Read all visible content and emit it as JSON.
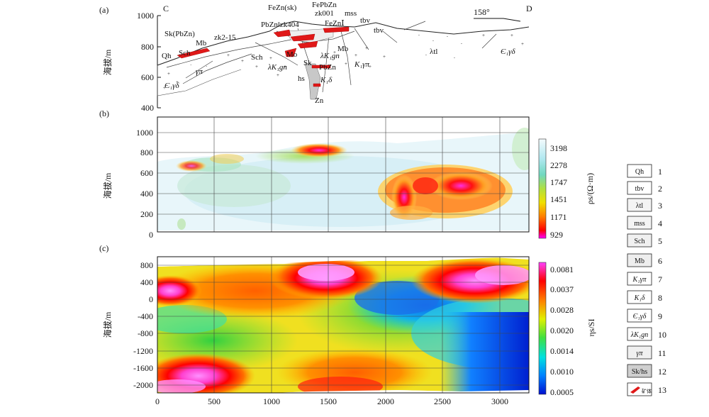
{
  "figure": {
    "panel_a": {
      "label": "(a)",
      "left_end": "C",
      "right_end": "D",
      "azimuth": "158°",
      "y_axis_label": "海拔/m",
      "y_ticks": [
        "1000",
        "800",
        "600",
        "400"
      ],
      "geo_labels": [
        {
          "text": "Sk(PbZn)"
        },
        {
          "text": "Mb"
        },
        {
          "text": "zk2-15"
        },
        {
          "text": "Qh"
        },
        {
          "text": "Sch"
        },
        {
          "text": "γπ"
        },
        {
          "text": "Є₁γδ"
        },
        {
          "text": "FeZn(sk)"
        },
        {
          "text": "FePbZn"
        },
        {
          "text": "PbZn‖zk404"
        },
        {
          "text": "zk001"
        },
        {
          "text": "mss"
        },
        {
          "text": "FeZnⅠ"
        },
        {
          "text": "tbv"
        },
        {
          "text": "tbv"
        },
        {
          "text": "Sch"
        },
        {
          "text": "Mo"
        },
        {
          "text": "λK₁gn"
        },
        {
          "text": "λK₁gn"
        },
        {
          "text": "Mb"
        },
        {
          "text": "Sk"
        },
        {
          "text": "PbZn"
        },
        {
          "text": "hs"
        },
        {
          "text": "K₁δ"
        },
        {
          "text": "K₁γπ"
        },
        {
          "text": "Zn"
        },
        {
          "text": "λtl"
        },
        {
          "text": "Є₁γδ"
        }
      ]
    },
    "panel_b": {
      "label": "(b)",
      "y_axis_label": "海拔/m",
      "colorbar_label": "ρs/(Ω·m)",
      "colorbar_ticks": [
        "3198",
        "2278",
        "1747",
        "1451",
        "1171",
        "929"
      ]
    },
    "panel_c": {
      "label": "(c)",
      "y_axis_label": "海拔/m",
      "colorbar_label": "ηs/SI",
      "colorbar_ticks": [
        "0.0081",
        "0.0037",
        "0.0028",
        "0.0020",
        "0.0014",
        "0.0010",
        "0.0005"
      ]
    },
    "legend": [
      {
        "symbol": "Qh",
        "num": "1"
      },
      {
        "symbol": "tbv",
        "num": "2"
      },
      {
        "symbol": "λtl",
        "num": "3"
      },
      {
        "symbol": "mss",
        "num": "4"
      },
      {
        "symbol": "Sch",
        "num": "5"
      },
      {
        "symbol": "Mb",
        "num": "6"
      },
      {
        "symbol": "K₁γπ",
        "num": "7"
      },
      {
        "symbol": "K₁δ",
        "num": "8"
      },
      {
        "symbol": "Є₁γδ",
        "num": "9"
      },
      {
        "symbol": "λK₁gn",
        "num": "10"
      },
      {
        "symbol": "γπ",
        "num": "11"
      },
      {
        "symbol": "Sk/hs",
        "num": "12"
      },
      {
        "symbol": "矿体",
        "num": "13"
      }
    ]
  },
  "chart_data": [
    {
      "type": "heatmap",
      "title": "",
      "ylabel": "海拔/m",
      "x": [
        0,
        500,
        1000,
        1500,
        2000,
        2500,
        3000
      ],
      "x_tick_labels": [
        "0",
        "500",
        "1000",
        "1500",
        "2000",
        "2500",
        "3000"
      ],
      "xlim": [
        0,
        3200
      ],
      "y_ticks": [
        0,
        200,
        400,
        600,
        800,
        1000
      ],
      "y_tick_labels": [
        "0",
        "200",
        "400",
        "600",
        "800",
        "1000"
      ],
      "ylim": [
        -60,
        1100
      ],
      "colorbar": {
        "label": "ρs/(Ω·m)",
        "ticks": [
          3198,
          2278,
          1747,
          1451,
          1171,
          929
        ]
      },
      "anomalies": [
        {
          "x": 2150,
          "y": 350,
          "value": 929
        },
        {
          "x": 2800,
          "y": 450,
          "value": 929
        },
        {
          "x": 1500,
          "y": 840,
          "value": 929
        }
      ]
    },
    {
      "type": "heatmap",
      "title": "",
      "ylabel": "海拔/m",
      "x": [
        0,
        500,
        1000,
        1500,
        2000,
        2500,
        3000
      ],
      "x_tick_labels": [
        "0",
        "500",
        "1000",
        "1500",
        "2000",
        "2500",
        "3000"
      ],
      "xlim": [
        0,
        3200
      ],
      "y_ticks": [
        800,
        400,
        0,
        -400,
        -800,
        -1200,
        -1600,
        -2000
      ],
      "y_tick_labels": [
        "800",
        "400",
        "0",
        "-400",
        "-800",
        "-1200",
        "-1600",
        "-2000"
      ],
      "ylim": [
        -2200,
        1000
      ],
      "colorbar": {
        "label": "ηs/SI",
        "ticks": [
          0.0081,
          0.0037,
          0.0028,
          0.002,
          0.0014,
          0.001,
          0.0005
        ]
      },
      "anomalies": [
        {
          "x": 1500,
          "y": 600,
          "value": 0.0081
        },
        {
          "x": 3000,
          "y": 500,
          "value": 0.0081
        },
        {
          "x": 150,
          "y": -1950,
          "value": 0.0081
        },
        {
          "x": 3100,
          "y": -1000,
          "value": 0.0005
        }
      ]
    }
  ]
}
